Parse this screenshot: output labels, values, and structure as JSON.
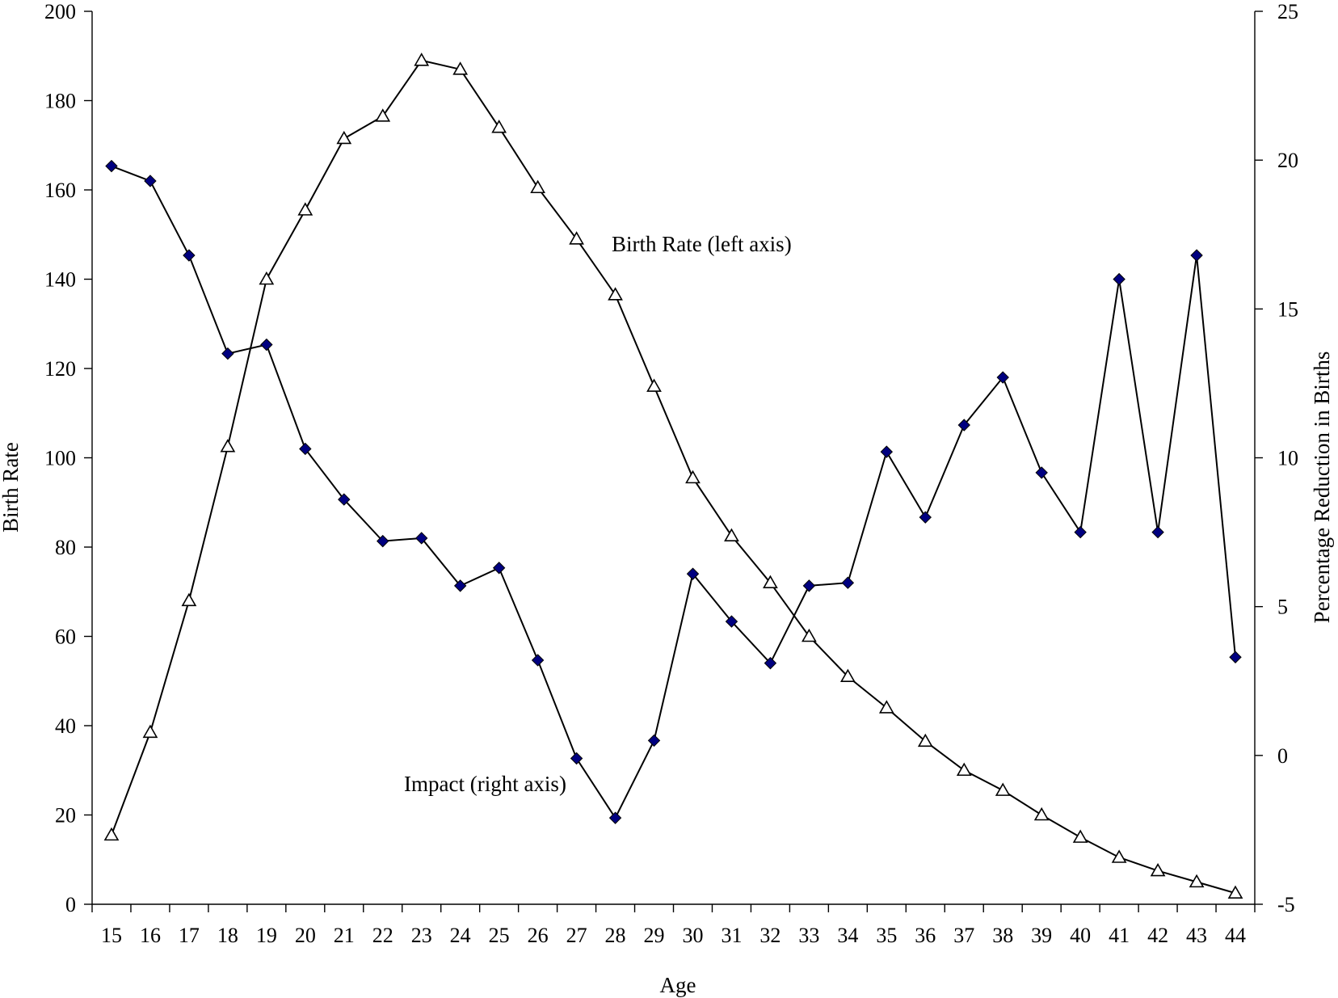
{
  "chart_data": {
    "type": "line",
    "title": "",
    "xlabel": "Age",
    "ylabel_left": "Birth Rate",
    "ylabel_right": "Percentage Reduction in Births",
    "x": [
      15,
      16,
      17,
      18,
      19,
      20,
      21,
      22,
      23,
      24,
      25,
      26,
      27,
      28,
      29,
      30,
      31,
      32,
      33,
      34,
      35,
      36,
      37,
      38,
      39,
      40,
      41,
      42,
      43,
      44
    ],
    "ylim_left": [
      0,
      200
    ],
    "yticks_left": [
      0,
      20,
      40,
      60,
      80,
      100,
      120,
      140,
      160,
      180,
      200
    ],
    "ylim_right": [
      -5,
      25
    ],
    "yticks_right": [
      -5,
      0,
      5,
      10,
      15,
      20,
      25
    ],
    "grid": false,
    "series": [
      {
        "axis": "left",
        "marker": "triangle-open",
        "color": "#000000",
        "values": [
          15.5,
          38.5,
          68,
          102.5,
          140,
          155.5,
          171.5,
          176.5,
          189,
          187,
          174,
          160.5,
          149,
          136.5,
          116,
          95.5,
          82.5,
          72,
          60,
          51,
          44,
          36.5,
          30,
          25.5,
          20,
          15,
          10.5,
          7.5,
          5,
          2.5
        ]
      },
      {
        "axis": "right",
        "marker": "diamond-filled",
        "color": "#000080",
        "values": [
          19.8,
          19.3,
          16.8,
          13.5,
          13.8,
          10.3,
          8.6,
          7.2,
          7.3,
          5.7,
          6.3,
          3.2,
          -0.1,
          -2.1,
          0.5,
          6.1,
          4.5,
          3.1,
          5.7,
          5.8,
          10.2,
          8.0,
          11.1,
          12.7,
          9.5,
          7.5,
          16.0,
          7.5,
          16.8,
          3.3
        ]
      }
    ],
    "annotations": [
      {
        "text": "Birth Rate (left axis)",
        "target": "left-series"
      },
      {
        "text": "Impact (right axis)",
        "target": "right-series"
      }
    ]
  }
}
